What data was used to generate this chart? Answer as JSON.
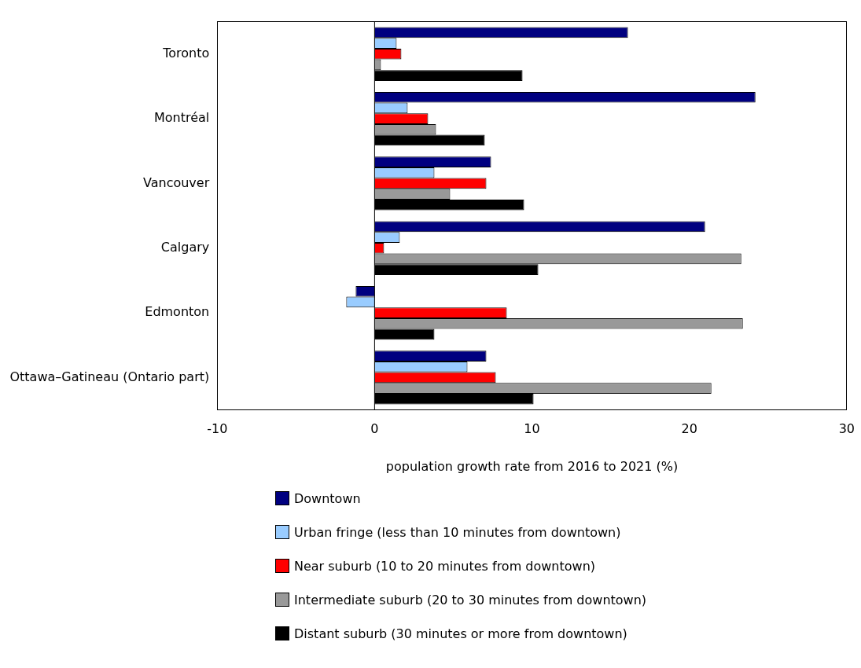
{
  "chart_data": {
    "type": "bar",
    "orientation": "horizontal",
    "xlabel": "population growth rate from 2016 to 2021 (%)",
    "categories": [
      "Toronto",
      "Montréal",
      "Vancouver",
      "Calgary",
      "Edmonton",
      "Ottawa–Gatineau (Ontario part)"
    ],
    "series": [
      {
        "name": "Downtown",
        "color": "#000080",
        "values": [
          16.1,
          24.2,
          7.4,
          21.0,
          -1.2,
          7.1
        ]
      },
      {
        "name": "Urban fringe (less than 10 minutes from downtown)",
        "color": "#99ccff",
        "values": [
          1.4,
          2.1,
          3.8,
          1.6,
          -1.8,
          5.9
        ]
      },
      {
        "name": "Near suburb (10 to 20 minutes from downtown)",
        "color": "#ff0000",
        "values": [
          1.7,
          3.4,
          7.1,
          0.6,
          8.4,
          7.7
        ]
      },
      {
        "name": "Intermediate suburb (20 to 30 minutes from downtown)",
        "color": "#999999",
        "values": [
          0.4,
          3.9,
          4.8,
          23.3,
          23.4,
          21.4
        ]
      },
      {
        "name": "Distant suburb (30 minutes or more from downtown)",
        "color": "#000000",
        "values": [
          9.4,
          7.0,
          9.5,
          10.4,
          3.8,
          10.1
        ]
      }
    ],
    "ref_lines": [
      {
        "axis": "x",
        "value": 0,
        "color": "#000000",
        "line_style": "solid"
      }
    ],
    "xlim": [
      -10,
      30
    ],
    "xticks": [
      -10,
      0,
      10,
      20,
      30
    ],
    "grid": false,
    "legend": "bottom"
  }
}
